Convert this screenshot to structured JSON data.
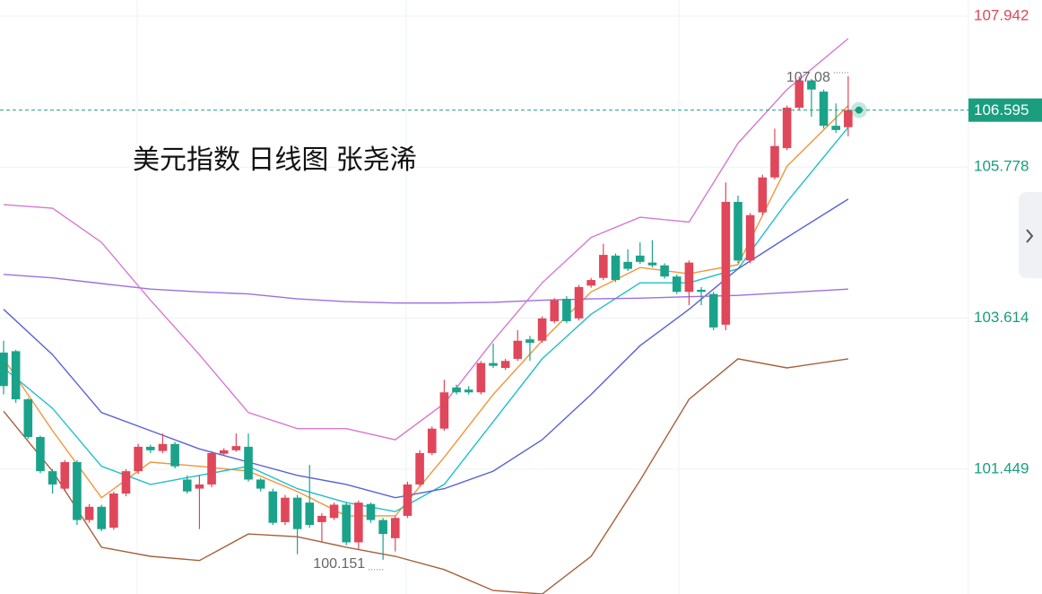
{
  "chart_data": {
    "type": "candlestick",
    "title": "美元指数 日线图 张尧浠",
    "ylim": [
      99.66,
      108.173
    ],
    "yticks": [
      107.942,
      105.778,
      103.614,
      101.449
    ],
    "tick_colors": [
      "#e0475a",
      "#1a9e7e",
      "#1a9e7e",
      "#1a9e7e"
    ],
    "grid": true,
    "up_color": "#e0475a",
    "down_color": "#1aa38a",
    "open": [
      103.12,
      103.14,
      102.45,
      101.91,
      101.42,
      101.17,
      101.55,
      100.72,
      100.91,
      100.61,
      101.1,
      101.42,
      101.77,
      101.71,
      101.81,
      101.3,
      101.17,
      101.23,
      101.67,
      101.72,
      101.77,
      101.3,
      101.13,
      100.69,
      101.04,
      100.97,
      100.69,
      100.75,
      100.94,
      100.4,
      100.95,
      100.72,
      100.46,
      100.78,
      101.23,
      101.68,
      102.03,
      102.62,
      102.59,
      102.55,
      102.97,
      102.9,
      103.03,
      103.31,
      103.29,
      103.57,
      103.89,
      103.61,
      104.08,
      104.19,
      104.51,
      104.42,
      104.51,
      104.41,
      104.37,
      104.21,
      103.99,
      104.02,
      103.96,
      103.52,
      105.28,
      104.44,
      105.13,
      105.63,
      106.05,
      106.63,
      107.02,
      106.86,
      106.37,
      106.35
    ],
    "high": [
      103.29,
      103.16,
      102.47,
      101.93,
      101.45,
      101.58,
      101.58,
      100.95,
      100.94,
      101.13,
      101.45,
      101.81,
      101.8,
      101.96,
      101.84,
      101.36,
      101.36,
      101.71,
      101.75,
      101.96,
      101.96,
      101.32,
      101.17,
      101.08,
      101.08,
      101.51,
      100.82,
      100.97,
      100.97,
      101.0,
      100.97,
      100.75,
      100.78,
      101.27,
      101.72,
      102.06,
      102.73,
      102.66,
      102.64,
      103.0,
      103.25,
      103.03,
      103.44,
      103.36,
      103.64,
      103.9,
      103.93,
      104.09,
      104.19,
      104.68,
      104.54,
      104.6,
      104.7,
      104.73,
      104.4,
      104.24,
      104.44,
      104.06,
      103.99,
      105.56,
      105.37,
      105.12,
      105.67,
      106.33,
      106.66,
      107.076,
      107.04,
      106.89,
      106.69,
      107.08
    ],
    "low": [
      102.52,
      102.4,
      101.88,
      101.39,
      101.1,
      101.13,
      100.65,
      100.68,
      100.56,
      100.58,
      101.06,
      101.38,
      101.68,
      101.68,
      101.46,
      101.1,
      100.59,
      101.19,
      101.64,
      101.7,
      101.27,
      101.13,
      100.65,
      100.65,
      100.23,
      100.61,
      100.4,
      100.72,
      100.36,
      100.3,
      100.68,
      100.151,
      100.27,
      100.75,
      101.2,
      101.65,
      102.0,
      102.52,
      102.52,
      102.52,
      102.9,
      102.87,
      103.0,
      103.0,
      103.26,
      103.54,
      103.54,
      103.58,
      104.05,
      104.16,
      104.13,
      104.29,
      104.39,
      104.34,
      104.18,
      103.96,
      103.8,
      103.8,
      103.44,
      103.44,
      104.4,
      104.4,
      105.09,
      105.6,
      106.02,
      106.6,
      106.5,
      106.33,
      106.27,
      106.22
    ],
    "close": [
      102.64,
      102.45,
      101.91,
      101.42,
      101.23,
      101.55,
      100.72,
      100.91,
      100.59,
      101.1,
      101.42,
      101.77,
      101.72,
      101.81,
      101.49,
      101.13,
      101.23,
      101.68,
      101.72,
      101.78,
      101.3,
      101.17,
      100.68,
      101.04,
      100.59,
      100.65,
      100.78,
      100.94,
      100.4,
      100.97,
      100.72,
      100.52,
      100.75,
      101.23,
      101.68,
      102.03,
      102.55,
      102.55,
      102.55,
      102.97,
      102.93,
      103.0,
      103.29,
      103.26,
      103.61,
      103.87,
      103.57,
      104.06,
      104.16,
      104.52,
      104.16,
      104.32,
      104.42,
      104.37,
      104.21,
      103.99,
      104.41,
      103.99,
      103.48,
      105.28,
      104.44,
      105.09,
      105.63,
      106.08,
      106.63,
      107.02,
      106.89,
      106.37,
      106.31,
      106.595
    ],
    "line_x": [
      0,
      4,
      8,
      12,
      16,
      20,
      24,
      28,
      32,
      36,
      40,
      44,
      48,
      52,
      56,
      60,
      64,
      69
    ],
    "lines": [
      {
        "color": "#f0963a",
        "values": [
          103.03,
          102.0,
          101.04,
          101.55,
          101.49,
          101.42,
          101.13,
          100.78,
          100.78,
          101.62,
          102.52,
          103.29,
          103.99,
          104.34,
          104.25,
          104.38,
          105.79,
          106.66
        ]
      },
      {
        "color": "#1fbfca",
        "values": [
          102.9,
          102.32,
          101.49,
          101.23,
          101.36,
          101.49,
          101.17,
          100.97,
          100.84,
          101.23,
          102.13,
          103.03,
          103.67,
          104.12,
          104.12,
          104.32,
          105.28,
          106.35
        ]
      },
      {
        "color": "#5861d8",
        "values": [
          103.74,
          103.09,
          102.26,
          102.0,
          101.74,
          101.55,
          101.36,
          101.23,
          101.04,
          101.17,
          101.42,
          101.87,
          102.52,
          103.22,
          103.74,
          104.32,
          104.77,
          105.32
        ]
      },
      {
        "color": "#9b6fe0",
        "values": [
          104.24,
          104.19,
          104.11,
          104.03,
          103.99,
          103.96,
          103.89,
          103.85,
          103.83,
          103.83,
          103.84,
          103.87,
          103.89,
          103.9,
          103.92,
          103.94,
          103.98,
          104.03
        ]
      },
      {
        "color": "#d878d0",
        "values": [
          105.24,
          105.19,
          104.7,
          103.87,
          103.09,
          102.26,
          102.03,
          102.03,
          101.87,
          102.39,
          103.29,
          104.12,
          104.77,
          105.06,
          104.99,
          106.12,
          106.89,
          107.62
        ]
      },
      {
        "color": "#a6603a",
        "values": [
          102.28,
          101.42,
          100.33,
          100.2,
          100.14,
          100.52,
          100.48,
          100.33,
          100.2,
          100.01,
          99.71,
          99.66,
          100.2,
          101.29,
          102.45,
          103.03,
          102.9,
          103.03
        ]
      }
    ]
  }
}
